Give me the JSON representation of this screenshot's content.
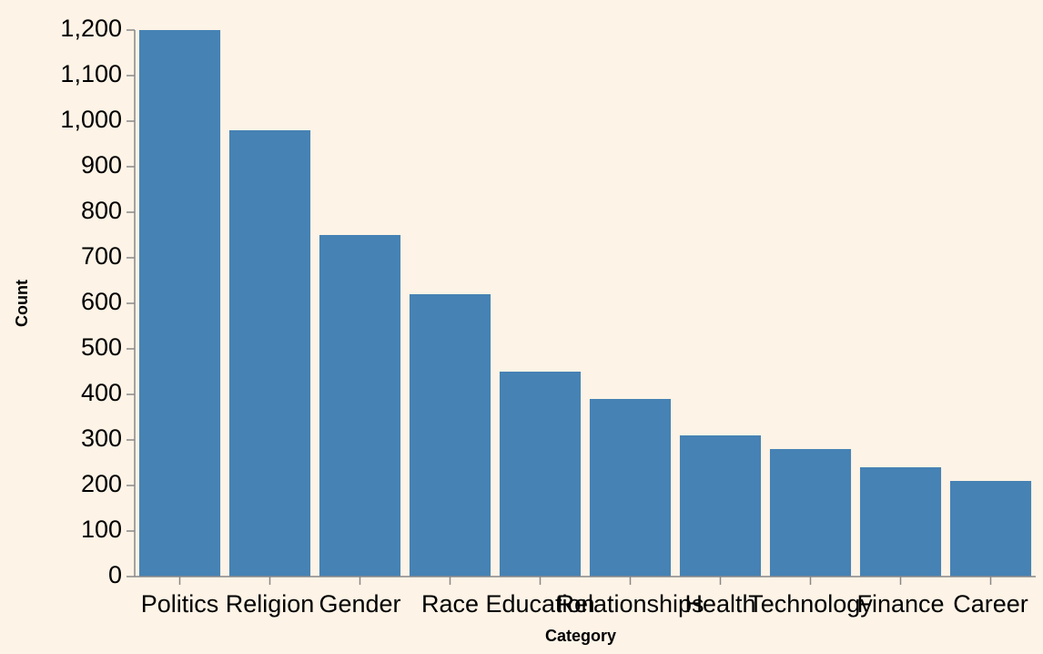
{
  "chart_data": {
    "type": "bar",
    "title": "",
    "xlabel": "Category",
    "ylabel": "Count",
    "categories": [
      "Politics",
      "Religion",
      "Gender",
      "Race",
      "Education",
      "Relationships",
      "Health",
      "Technology",
      "Finance",
      "Career"
    ],
    "values": [
      1200,
      980,
      750,
      620,
      450,
      390,
      310,
      280,
      240,
      210
    ],
    "ylim": [
      0,
      1200
    ],
    "yticks": [
      0,
      100,
      200,
      300,
      400,
      500,
      600,
      700,
      800,
      900,
      1000,
      1100,
      1200
    ],
    "ytick_labels": [
      "0",
      "100",
      "200",
      "300",
      "400",
      "500",
      "600",
      "700",
      "800",
      "900",
      "1,000",
      "1,100",
      "1,200"
    ],
    "grid": false,
    "legend": "none",
    "colors": {
      "bar": "#4682b4",
      "background": "#fdf3e6",
      "axis": "#888888"
    }
  }
}
